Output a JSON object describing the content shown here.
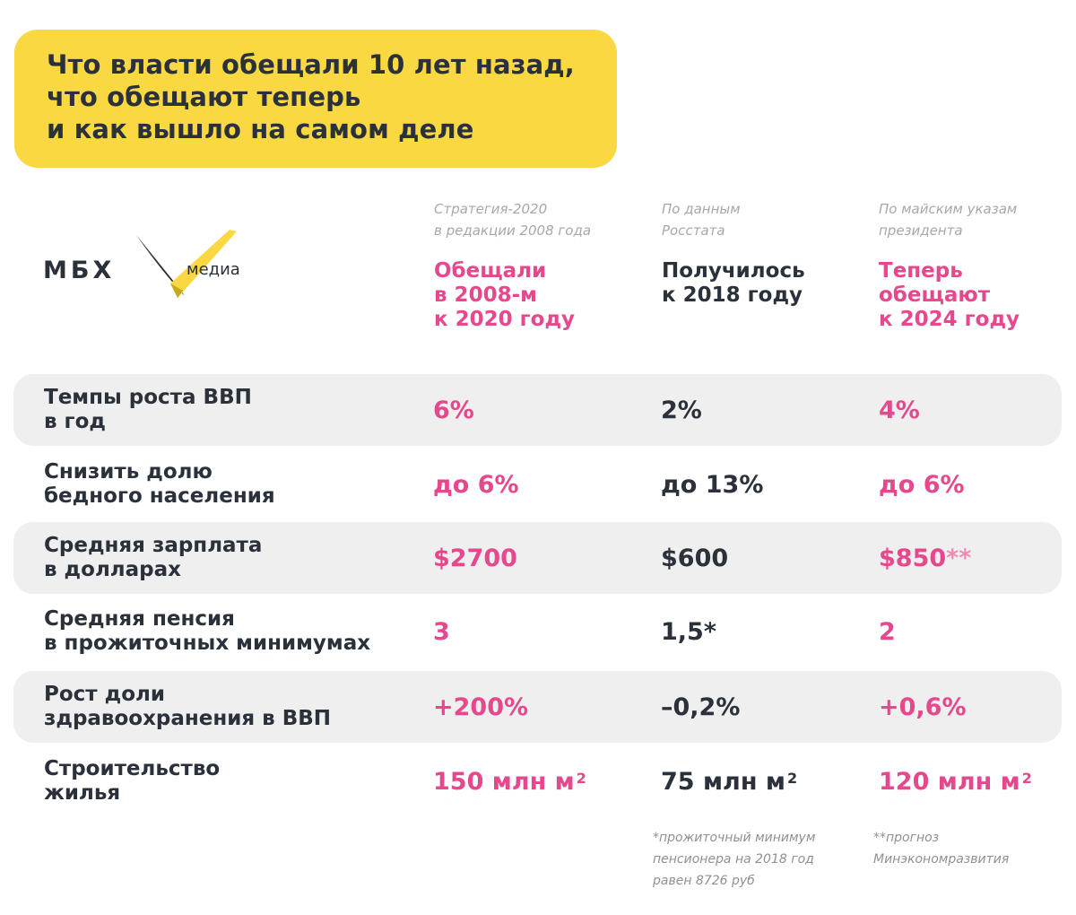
{
  "headline": {
    "text": "Что власти обещали 10 лет назад,\nчто обещают теперь\nи как вышло на самом деле"
  },
  "logo": {
    "mbx": "МБХ",
    "media": "медиа"
  },
  "columns": [
    {
      "source": "Стратегия-2020\nв редакции 2008 года",
      "title": "Обещали\nв 2008-м\nк 2020 году"
    },
    {
      "source": "По данным\nРосстата",
      "title": "Получилось\nк 2018 году"
    },
    {
      "source": "По майским указам\nпрезидента",
      "title": "Теперь\nобещают\nк 2024 году"
    }
  ],
  "rows": [
    {
      "label": "Темпы роста ВВП\nв год",
      "v1": "6%",
      "v2": "2%",
      "v3": "4%"
    },
    {
      "label": "Снизить долю\nбедного населения",
      "v1": "до 6%",
      "v2": "до 13%",
      "v3": "до 6%"
    },
    {
      "label": "Средняя зарплата\nв долларах",
      "v1": "$2700",
      "v2": "$600",
      "v3": "$850",
      "v3_mark": "**"
    },
    {
      "label": "Средняя пенсия\nв прожиточных минимумах",
      "v1": "3",
      "v2": "1,5",
      "v2_mark": "*",
      "v3": "2"
    },
    {
      "label": "Рост доли\nздравоохранения в ВВП",
      "v1": "+200%",
      "v2": "–0,2%",
      "v3": "+0,6%"
    },
    {
      "label": "Строительство\nжилья",
      "v1": "150 млн м",
      "v1_sup": "2",
      "v2": "75 млн м",
      "v2_sup": "2",
      "v3": "120 млн м",
      "v3_sup": "2"
    }
  ],
  "notes": {
    "note1": "*прожиточный минимум\n пенсионера на 2018 год\n равен 8726 руб",
    "note2": "**прогноз\n  Минэкономразвития"
  },
  "colors": {
    "yellow": "#f9d842",
    "pink": "#e5488c",
    "dark": "#2b313a",
    "row_shade": "#efefef"
  }
}
